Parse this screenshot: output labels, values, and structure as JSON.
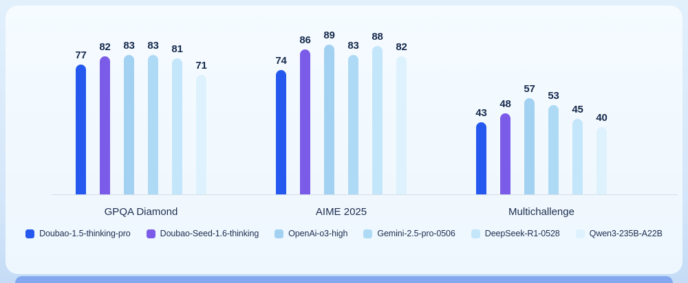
{
  "chart_data": {
    "type": "bar",
    "title": "",
    "categories": [
      "GPQA Diamond",
      "AIME 2025",
      "Multichallenge"
    ],
    "series": [
      {
        "name": "Doubao-1.5-thinking-pro",
        "color": "#2458ef",
        "values": [
          77,
          74,
          43
        ]
      },
      {
        "name": "Doubao-Seed-1.6-thinking",
        "color": "#7b5ce9",
        "values": [
          82,
          86,
          48
        ]
      },
      {
        "name": "OpenAi-o3-high",
        "color": "#a2d1f2",
        "values": [
          83,
          89,
          57
        ]
      },
      {
        "name": "Gemini-2.5-pro-0506",
        "color": "#aedaf6",
        "values": [
          83,
          83,
          53
        ]
      },
      {
        "name": "DeepSeek-R1-0528",
        "color": "#c4e6fa",
        "values": [
          81,
          88,
          45
        ]
      },
      {
        "name": "Qwen3-235B-A22B",
        "color": "#def2fd",
        "values": [
          71,
          82,
          40
        ]
      }
    ],
    "ylim": [
      0,
      100
    ],
    "grid": false,
    "legend_position": "bottom",
    "value_labels_shown": true
  },
  "style": {
    "value_label_color": "#16294c",
    "axis_line_color": "#d7dde7",
    "card_background": "#f2f9fe",
    "frame_background": "#d6e8fa",
    "bottom_strip_color": "#83a8f0"
  }
}
